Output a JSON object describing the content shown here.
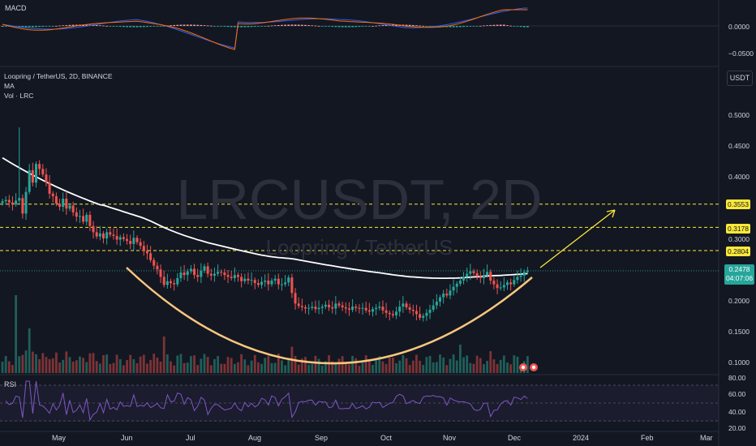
{
  "symbol": {
    "title": "Loopring / TetherUS, 2D, BINANCE",
    "indicator_ma": "MA",
    "indicator_vol": "Vol · LRC",
    "watermark_main": "LRCUSDT, 2D",
    "watermark_sub": "Loopring / TetherUS"
  },
  "panes": {
    "macd_label": "MACD",
    "rsi_label": "RSI",
    "currency_button": "USDT"
  },
  "price_axis": {
    "ticks": [
      "0.5000",
      "0.4500",
      "0.4000",
      "0.3000",
      "0.2000",
      "0.1500",
      "0.1000"
    ],
    "macd_ticks": [
      "0.0000",
      "−0.0500"
    ],
    "rsi_ticks": [
      "80.00",
      "60.00",
      "40.00",
      "20.00"
    ]
  },
  "levels": [
    "0.3553",
    "0.3178",
    "0.2804"
  ],
  "current_price": {
    "value": "0.2478",
    "countdown": "04:07:06"
  },
  "time_axis": [
    "May",
    "Jun",
    "Jul",
    "Aug",
    "Sep",
    "Oct",
    "Nov",
    "Dec",
    "2024",
    "Feb",
    "Mar"
  ],
  "colors": {
    "background": "#131722",
    "up": "#26a69a",
    "down": "#ef5350",
    "ma": "#ffffff",
    "level": "#fbe83a",
    "arc": "#f9c67f",
    "arrow": "#fbe83a",
    "rsi": "#7e57c2",
    "macd": "#2962ff",
    "signal": "#ff6d00"
  },
  "chart_data": {
    "type": "candlestick",
    "price_range": [
      0.05,
      0.55
    ],
    "step_days": 2,
    "closes": [
      0.36,
      0.362,
      0.358,
      0.355,
      0.361,
      0.365,
      0.34,
      0.375,
      0.41,
      0.39,
      0.42,
      0.412,
      0.403,
      0.39,
      0.372,
      0.368,
      0.356,
      0.351,
      0.364,
      0.348,
      0.353,
      0.342,
      0.335,
      0.336,
      0.327,
      0.338,
      0.32,
      0.31,
      0.303,
      0.308,
      0.3,
      0.31,
      0.306,
      0.304,
      0.298,
      0.302,
      0.299,
      0.296,
      0.291,
      0.301,
      0.294,
      0.288,
      0.28,
      0.276,
      0.265,
      0.256,
      0.25,
      0.238,
      0.225,
      0.231,
      0.228,
      0.226,
      0.236,
      0.245,
      0.241,
      0.247,
      0.251,
      0.241,
      0.238,
      0.248,
      0.255,
      0.243,
      0.24,
      0.243,
      0.246,
      0.245,
      0.241,
      0.238,
      0.236,
      0.241,
      0.238,
      0.231,
      0.235,
      0.232,
      0.233,
      0.228,
      0.225,
      0.23,
      0.232,
      0.226,
      0.232,
      0.235,
      0.226,
      0.226,
      0.229,
      0.237,
      0.212,
      0.195,
      0.191,
      0.189,
      0.187,
      0.188,
      0.19,
      0.186,
      0.188,
      0.19,
      0.193,
      0.189,
      0.187,
      0.195,
      0.192,
      0.189,
      0.187,
      0.185,
      0.19,
      0.188,
      0.187,
      0.188,
      0.184,
      0.182,
      0.186,
      0.188,
      0.19,
      0.184,
      0.18,
      0.178,
      0.176,
      0.182,
      0.19,
      0.195,
      0.189,
      0.185,
      0.183,
      0.178,
      0.172,
      0.175,
      0.18,
      0.185,
      0.192,
      0.198,
      0.205,
      0.211,
      0.208,
      0.216,
      0.222,
      0.227,
      0.232,
      0.238,
      0.243,
      0.247,
      0.244,
      0.239,
      0.236,
      0.241,
      0.246,
      0.232,
      0.226,
      0.22,
      0.221,
      0.225,
      0.229,
      0.226,
      0.233,
      0.238,
      0.24,
      0.246,
      0.248
    ]
  }
}
